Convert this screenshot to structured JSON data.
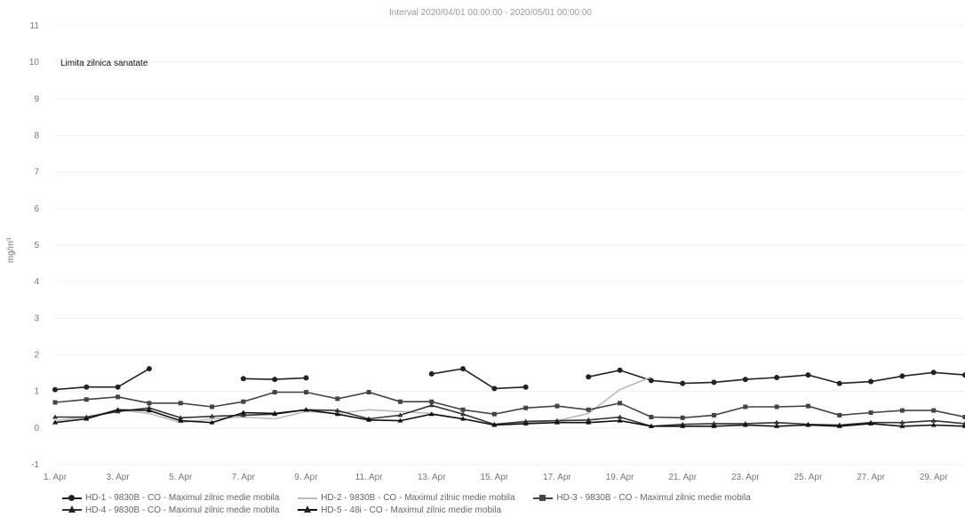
{
  "chart_data": {
    "type": "line",
    "title": "Interval 2020/04/01 00:00:00 - 2020/05/01 00:00:00",
    "ylabel": "mg/m³",
    "ylim": [
      -1,
      11
    ],
    "yticks": [
      -1,
      0,
      1,
      2,
      3,
      4,
      5,
      6,
      7,
      8,
      9,
      10,
      11
    ],
    "xlim": [
      1,
      30
    ],
    "xtick_values": [
      1,
      3,
      5,
      7,
      9,
      11,
      13,
      15,
      17,
      19,
      21,
      23,
      25,
      27,
      29
    ],
    "xtick_labels": [
      "1. Apr",
      "3. Apr",
      "5. Apr",
      "7. Apr",
      "9. Apr",
      "11. Apr",
      "13. Apr",
      "15. Apr",
      "17. Apr",
      "19. Apr",
      "21. Apr",
      "23. Apr",
      "25. Apr",
      "27. Apr",
      "29. Apr"
    ],
    "grid": true,
    "legend_position": "bottom",
    "plot_line": {
      "label": "Limita zilnica sanatate",
      "value": 10
    },
    "x": [
      1,
      2,
      3,
      4,
      5,
      6,
      7,
      8,
      9,
      10,
      11,
      12,
      13,
      14,
      15,
      16,
      17,
      18,
      19,
      20,
      21,
      22,
      23,
      24,
      25,
      26,
      27,
      28,
      29,
      30
    ],
    "series": [
      {
        "name": "HD-1 - 9830B - CO - Maximul zilnic medie mobila",
        "color": "#222222",
        "marker": "circle",
        "values": [
          1.05,
          1.12,
          1.12,
          1.62,
          null,
          null,
          1.35,
          1.33,
          1.37,
          null,
          null,
          null,
          1.48,
          1.62,
          1.08,
          1.12,
          null,
          1.4,
          1.58,
          1.3,
          1.22,
          1.25,
          1.33,
          1.38,
          1.45,
          1.22,
          1.27,
          1.42,
          1.52,
          1.45
        ]
      },
      {
        "name": "HD-2 - 9830B - CO - Maximul zilnic medie mobila",
        "color": "#bbbbbb",
        "marker": "none",
        "values": [
          0.2,
          0.3,
          0.5,
          0.4,
          0.15,
          0.25,
          0.3,
          0.25,
          0.45,
          0.4,
          0.5,
          0.45,
          0.4,
          0.25,
          0.1,
          0.15,
          0.2,
          0.4,
          1.05,
          1.4,
          null,
          null,
          null,
          null,
          null,
          null,
          null,
          null,
          null,
          null
        ]
      },
      {
        "name": "HD-3 - 9830B - CO - Maximul zilnic medie mobila",
        "color": "#444444",
        "marker": "square",
        "values": [
          0.7,
          0.78,
          0.85,
          0.68,
          0.68,
          0.58,
          0.72,
          0.98,
          0.98,
          0.8,
          0.98,
          0.72,
          0.72,
          0.5,
          0.38,
          0.55,
          0.6,
          0.5,
          0.68,
          0.3,
          0.28,
          0.35,
          0.58,
          0.58,
          0.6,
          0.35,
          0.42,
          0.48,
          0.48,
          0.3
        ]
      },
      {
        "name": "HD-4 - 9830B - CO - Maximul zilnic medie mobila",
        "color": "#333333",
        "marker": "triangle",
        "values": [
          0.3,
          0.3,
          0.45,
          0.55,
          0.28,
          0.32,
          0.35,
          0.38,
          0.5,
          0.48,
          0.25,
          0.35,
          0.62,
          0.38,
          0.1,
          0.18,
          0.2,
          0.22,
          0.3,
          0.05,
          0.1,
          0.12,
          0.12,
          0.15,
          0.1,
          0.08,
          0.15,
          0.15,
          0.2,
          0.12
        ]
      },
      {
        "name": "HD-5 - 48i - CO - Maximul zilnic medie mobila",
        "color": "#111111",
        "marker": "triangle",
        "values": [
          0.15,
          0.25,
          0.5,
          0.48,
          0.2,
          0.15,
          0.42,
          0.4,
          0.5,
          0.38,
          0.22,
          0.2,
          0.38,
          0.25,
          0.08,
          0.12,
          0.15,
          0.15,
          0.2,
          0.05,
          0.05,
          0.05,
          0.08,
          0.05,
          0.08,
          0.05,
          0.12,
          0.05,
          0.08,
          0.05
        ]
      }
    ]
  }
}
